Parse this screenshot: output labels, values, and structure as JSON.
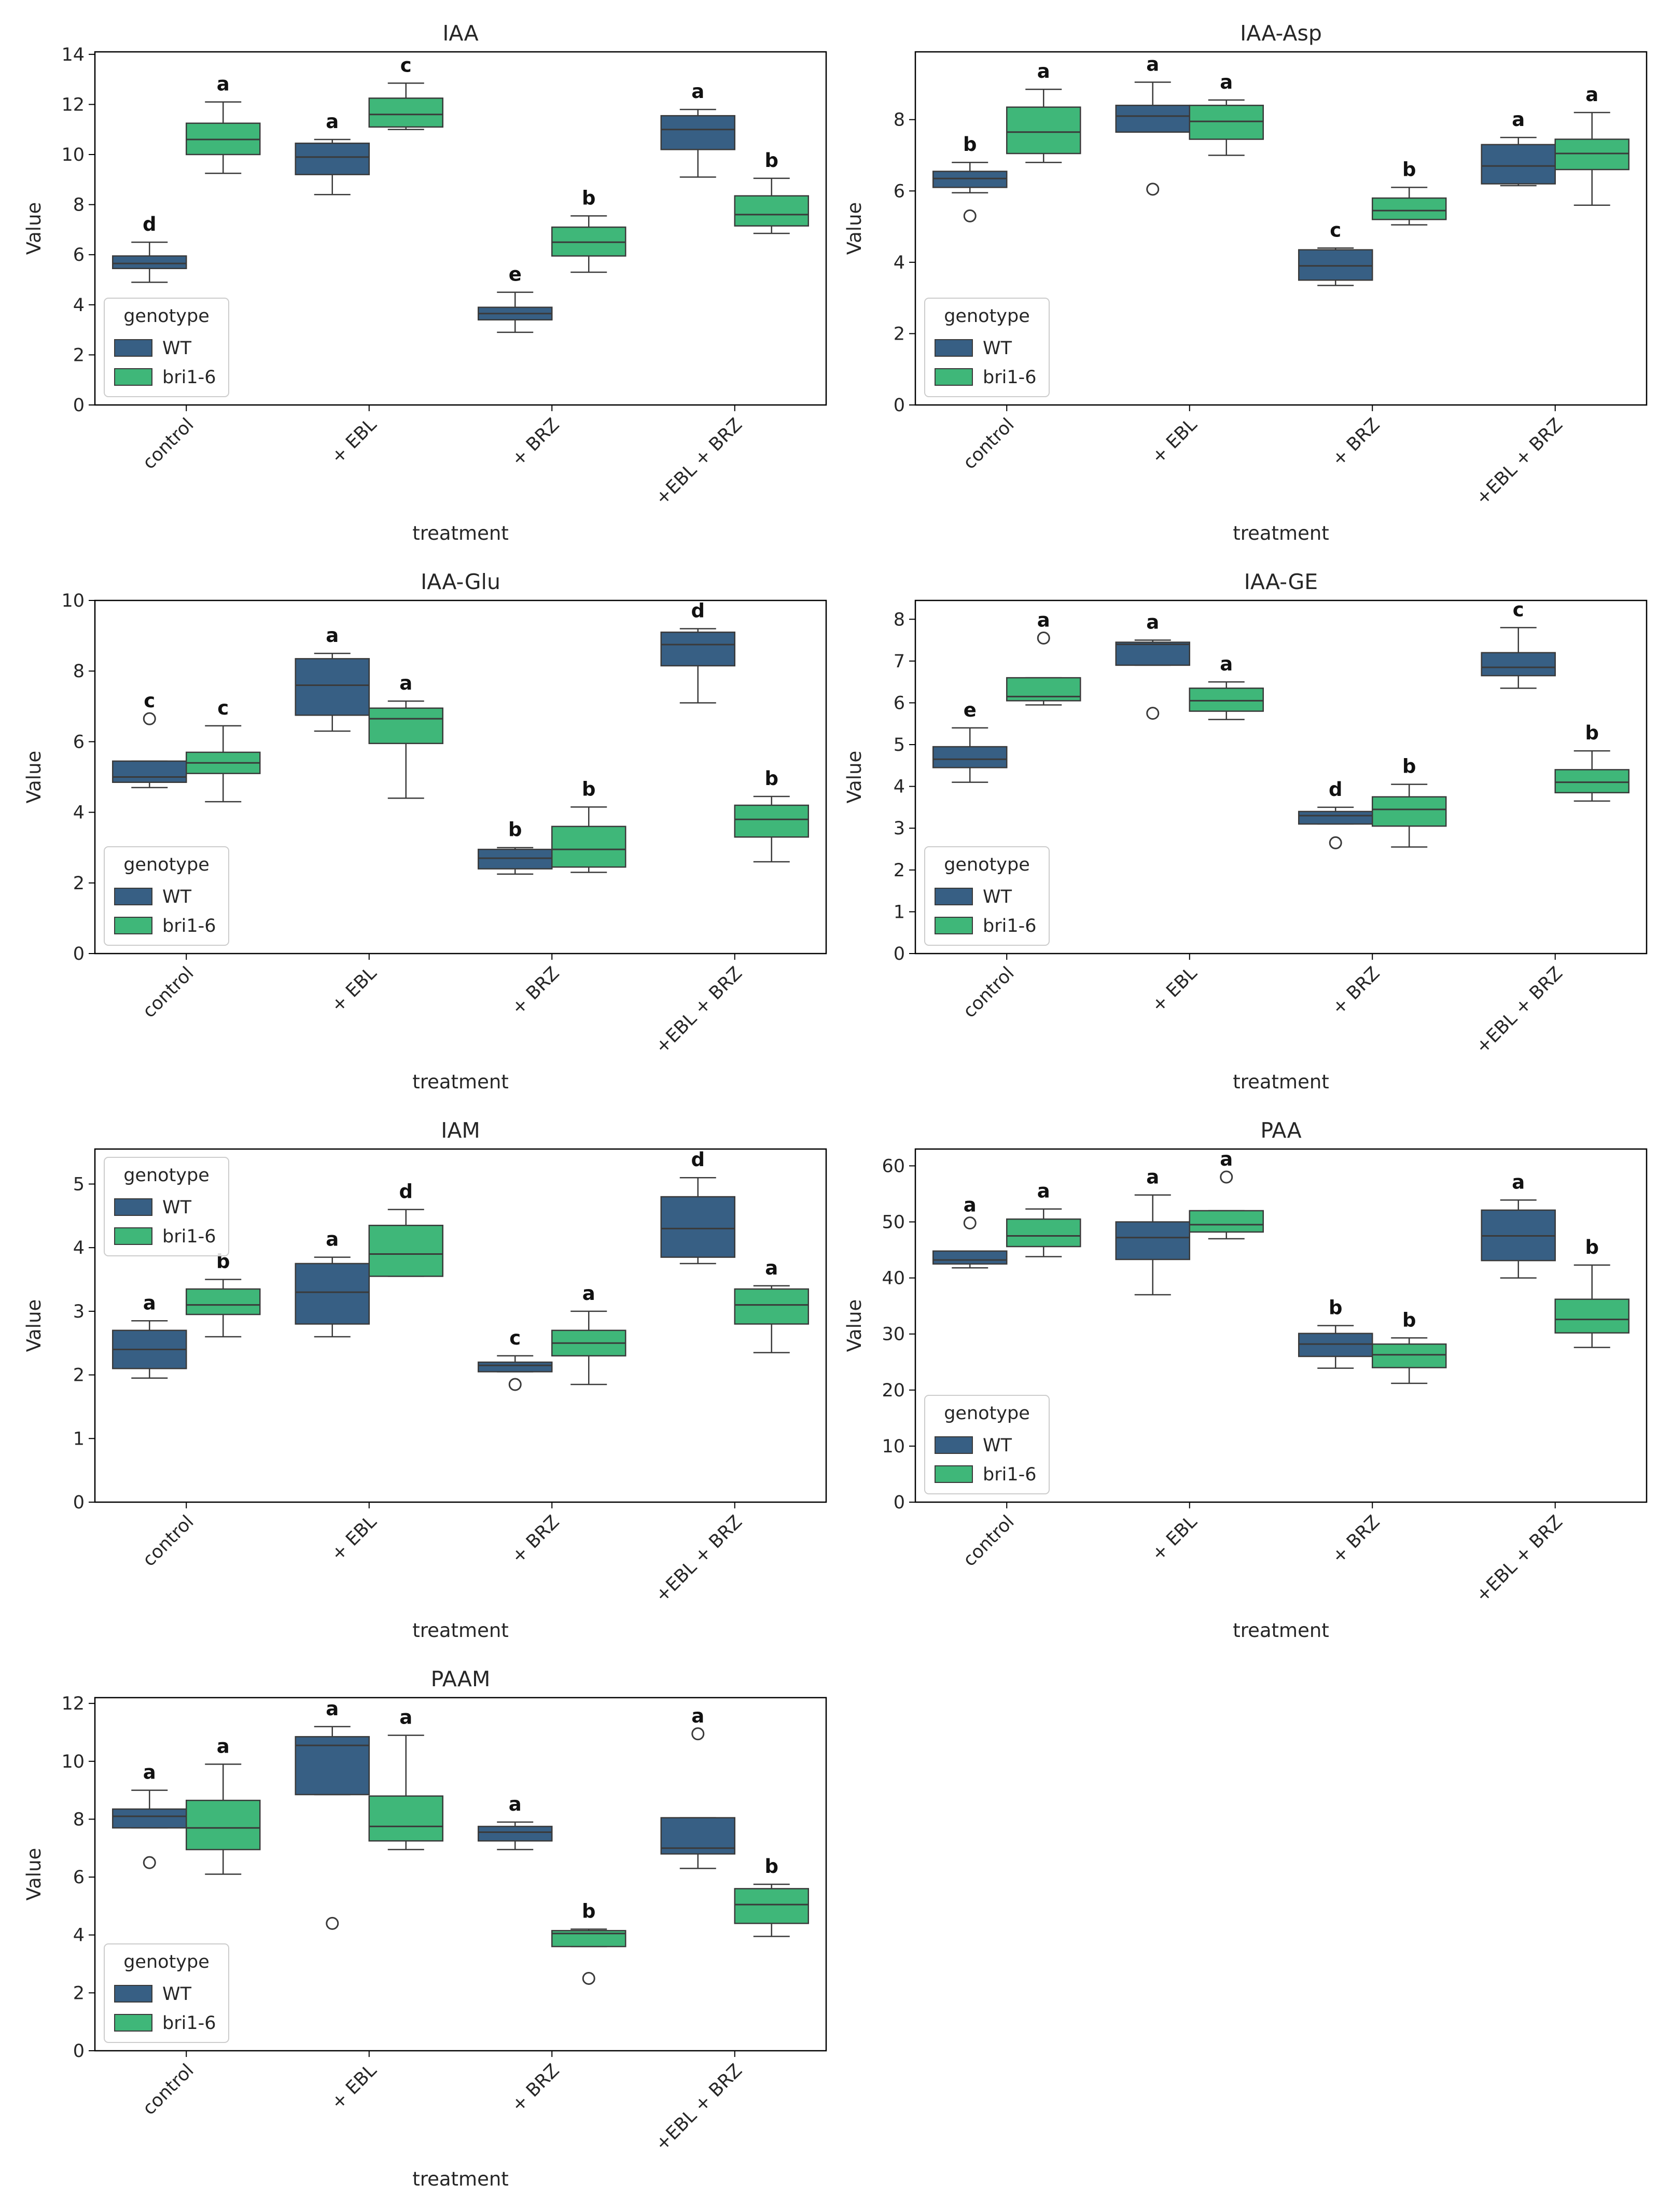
{
  "figure": {
    "x_axis_label": "treatment",
    "y_axis_label": "Value",
    "legend_title": "genotype",
    "categories": [
      "control",
      "+ EBL",
      "+ BRZ",
      "+EBL + BRZ"
    ],
    "series_names": [
      "WT",
      "bri1-6"
    ],
    "colors": {
      "WT": "#375f84",
      "bri1-6": "#3fb779",
      "median": "#3a3a3a",
      "frame": "#000000"
    }
  },
  "chart_data": [
    {
      "type": "box",
      "title": "IAA",
      "xlabel": "treatment",
      "ylabel": "Value",
      "categories": [
        "control",
        "+ EBL",
        "+ BRZ",
        "+EBL + BRZ"
      ],
      "ylim": [
        0,
        14.1
      ],
      "yticks": [
        0,
        2,
        4,
        6,
        8,
        10,
        12,
        14
      ],
      "legend": {
        "title": "genotype",
        "entries": [
          "WT",
          "bri1-6"
        ],
        "placement": "lower-left"
      },
      "series": [
        {
          "name": "WT",
          "boxes": [
            {
              "min": 4.9,
              "q1": 5.45,
              "median": 5.65,
              "q3": 5.95,
              "max": 6.5,
              "outliers": [],
              "letter": "d"
            },
            {
              "min": 8.4,
              "q1": 9.2,
              "median": 9.9,
              "q3": 10.45,
              "max": 10.6,
              "outliers": [],
              "letter": "a"
            },
            {
              "min": 2.9,
              "q1": 3.4,
              "median": 3.65,
              "q3": 3.9,
              "max": 4.5,
              "outliers": [],
              "letter": "e"
            },
            {
              "min": 9.1,
              "q1": 10.2,
              "median": 11.0,
              "q3": 11.55,
              "max": 11.8,
              "outliers": [],
              "letter": "a"
            }
          ]
        },
        {
          "name": "bri1-6",
          "boxes": [
            {
              "min": 9.25,
              "q1": 10.0,
              "median": 10.6,
              "q3": 11.25,
              "max": 12.1,
              "outliers": [],
              "letter": "a"
            },
            {
              "min": 11.0,
              "q1": 11.1,
              "median": 11.6,
              "q3": 12.25,
              "max": 12.85,
              "outliers": [],
              "letter": "c"
            },
            {
              "min": 5.3,
              "q1": 5.95,
              "median": 6.5,
              "q3": 7.1,
              "max": 7.55,
              "outliers": [],
              "letter": "b"
            },
            {
              "min": 6.85,
              "q1": 7.15,
              "median": 7.6,
              "q3": 8.35,
              "max": 9.05,
              "outliers": [],
              "letter": "b"
            }
          ]
        }
      ]
    },
    {
      "type": "box",
      "title": "IAA-Asp",
      "xlabel": "treatment",
      "ylabel": "Value",
      "categories": [
        "control",
        "+ EBL",
        "+ BRZ",
        "+EBL + BRZ"
      ],
      "ylim": [
        0,
        9.9
      ],
      "yticks": [
        0,
        2,
        4,
        6,
        8
      ],
      "legend": {
        "title": "genotype",
        "entries": [
          "WT",
          "bri1-6"
        ],
        "placement": "lower-left"
      },
      "series": [
        {
          "name": "WT",
          "boxes": [
            {
              "min": 5.95,
              "q1": 6.1,
              "median": 6.35,
              "q3": 6.55,
              "max": 6.8,
              "outliers": [
                5.3
              ],
              "letter": "b"
            },
            {
              "min": 7.65,
              "q1": 7.65,
              "median": 8.1,
              "q3": 8.4,
              "max": 9.05,
              "outliers": [
                6.05
              ],
              "letter": "a"
            },
            {
              "min": 3.35,
              "q1": 3.5,
              "median": 3.9,
              "q3": 4.35,
              "max": 4.4,
              "outliers": [],
              "letter": "c"
            },
            {
              "min": 6.15,
              "q1": 6.2,
              "median": 6.7,
              "q3": 7.3,
              "max": 7.5,
              "outliers": [],
              "letter": "a"
            }
          ]
        },
        {
          "name": "bri1-6",
          "boxes": [
            {
              "min": 6.8,
              "q1": 7.05,
              "median": 7.65,
              "q3": 8.35,
              "max": 8.85,
              "outliers": [],
              "letter": "a"
            },
            {
              "min": 7.0,
              "q1": 7.45,
              "median": 7.95,
              "q3": 8.4,
              "max": 8.55,
              "outliers": [],
              "letter": "a"
            },
            {
              "min": 5.05,
              "q1": 5.2,
              "median": 5.45,
              "q3": 5.8,
              "max": 6.1,
              "outliers": [],
              "letter": "b"
            },
            {
              "min": 5.6,
              "q1": 6.6,
              "median": 7.05,
              "q3": 7.45,
              "max": 8.2,
              "outliers": [],
              "letter": "a"
            }
          ]
        }
      ]
    },
    {
      "type": "box",
      "title": "IAA-Glu",
      "xlabel": "treatment",
      "ylabel": "Value",
      "categories": [
        "control",
        "+ EBL",
        "+ BRZ",
        "+EBL + BRZ"
      ],
      "ylim": [
        0,
        10.0
      ],
      "yticks": [
        0,
        2,
        4,
        6,
        8,
        10
      ],
      "legend": {
        "title": "genotype",
        "entries": [
          "WT",
          "bri1-6"
        ],
        "placement": "lower-left"
      },
      "series": [
        {
          "name": "WT",
          "boxes": [
            {
              "min": 4.7,
              "q1": 4.85,
              "median": 5.0,
              "q3": 5.45,
              "max": 5.45,
              "outliers": [
                6.65
              ],
              "letter": "c"
            },
            {
              "min": 6.3,
              "q1": 6.75,
              "median": 7.6,
              "q3": 8.35,
              "max": 8.5,
              "outliers": [],
              "letter": "a"
            },
            {
              "min": 2.25,
              "q1": 2.4,
              "median": 2.7,
              "q3": 2.95,
              "max": 3.0,
              "outliers": [],
              "letter": "b"
            },
            {
              "min": 7.1,
              "q1": 8.15,
              "median": 8.75,
              "q3": 9.1,
              "max": 9.2,
              "outliers": [],
              "letter": "d"
            }
          ]
        },
        {
          "name": "bri1-6",
          "boxes": [
            {
              "min": 4.3,
              "q1": 5.1,
              "median": 5.4,
              "q3": 5.7,
              "max": 6.45,
              "outliers": [],
              "letter": "c"
            },
            {
              "min": 4.4,
              "q1": 5.95,
              "median": 6.65,
              "q3": 6.95,
              "max": 7.15,
              "outliers": [],
              "letter": "a"
            },
            {
              "min": 2.3,
              "q1": 2.45,
              "median": 2.95,
              "q3": 3.6,
              "max": 4.15,
              "outliers": [],
              "letter": "b"
            },
            {
              "min": 2.6,
              "q1": 3.3,
              "median": 3.8,
              "q3": 4.2,
              "max": 4.45,
              "outliers": [],
              "letter": "b"
            }
          ]
        }
      ]
    },
    {
      "type": "box",
      "title": "IAA-GE",
      "xlabel": "treatment",
      "ylabel": "Value",
      "categories": [
        "control",
        "+ EBL",
        "+ BRZ",
        "+EBL + BRZ"
      ],
      "ylim": [
        0,
        8.45
      ],
      "yticks": [
        0,
        1,
        2,
        3,
        4,
        5,
        6,
        7,
        8
      ],
      "legend": {
        "title": "genotype",
        "entries": [
          "WT",
          "bri1-6"
        ],
        "placement": "lower-left"
      },
      "series": [
        {
          "name": "WT",
          "boxes": [
            {
              "min": 4.1,
              "q1": 4.45,
              "median": 4.65,
              "q3": 4.95,
              "max": 5.4,
              "outliers": [],
              "letter": "e"
            },
            {
              "min": 6.9,
              "q1": 6.9,
              "median": 7.4,
              "q3": 7.45,
              "max": 7.5,
              "outliers": [
                5.75
              ],
              "letter": "a"
            },
            {
              "min": 3.1,
              "q1": 3.1,
              "median": 3.3,
              "q3": 3.4,
              "max": 3.5,
              "outliers": [
                2.65
              ],
              "letter": "d"
            },
            {
              "min": 6.35,
              "q1": 6.65,
              "median": 6.85,
              "q3": 7.2,
              "max": 7.8,
              "outliers": [],
              "letter": "c"
            }
          ]
        },
        {
          "name": "bri1-6",
          "boxes": [
            {
              "min": 5.95,
              "q1": 6.05,
              "median": 6.15,
              "q3": 6.6,
              "max": 6.6,
              "outliers": [
                7.55
              ],
              "letter": "a"
            },
            {
              "min": 5.6,
              "q1": 5.8,
              "median": 6.05,
              "q3": 6.35,
              "max": 6.5,
              "outliers": [],
              "letter": "a"
            },
            {
              "min": 2.55,
              "q1": 3.05,
              "median": 3.45,
              "q3": 3.75,
              "max": 4.05,
              "outliers": [],
              "letter": "b"
            },
            {
              "min": 3.65,
              "q1": 3.85,
              "median": 4.1,
              "q3": 4.4,
              "max": 4.85,
              "outliers": [],
              "letter": "b"
            }
          ]
        }
      ]
    },
    {
      "type": "box",
      "title": "IAM",
      "xlabel": "treatment",
      "ylabel": "Value",
      "categories": [
        "control",
        "+ EBL",
        "+ BRZ",
        "+EBL + BRZ"
      ],
      "ylim": [
        0,
        5.55
      ],
      "yticks": [
        0,
        1,
        2,
        3,
        4,
        5
      ],
      "legend": {
        "title": "genotype",
        "entries": [
          "WT",
          "bri1-6"
        ],
        "placement": "upper-left"
      },
      "series": [
        {
          "name": "WT",
          "boxes": [
            {
              "min": 1.95,
              "q1": 2.1,
              "median": 2.4,
              "q3": 2.7,
              "max": 2.85,
              "outliers": [],
              "letter": "a"
            },
            {
              "min": 2.6,
              "q1": 2.8,
              "median": 3.3,
              "q3": 3.75,
              "max": 3.85,
              "outliers": [],
              "letter": "a"
            },
            {
              "min": 2.05,
              "q1": 2.05,
              "median": 2.15,
              "q3": 2.2,
              "max": 2.3,
              "outliers": [
                1.85
              ],
              "letter": "c"
            },
            {
              "min": 3.75,
              "q1": 3.85,
              "median": 4.3,
              "q3": 4.8,
              "max": 5.1,
              "outliers": [],
              "letter": "d"
            }
          ]
        },
        {
          "name": "bri1-6",
          "boxes": [
            {
              "min": 2.6,
              "q1": 2.95,
              "median": 3.1,
              "q3": 3.35,
              "max": 3.5,
              "outliers": [],
              "letter": "b"
            },
            {
              "min": 3.55,
              "q1": 3.55,
              "median": 3.9,
              "q3": 4.35,
              "max": 4.6,
              "outliers": [],
              "letter": "d"
            },
            {
              "min": 1.85,
              "q1": 2.3,
              "median": 2.5,
              "q3": 2.7,
              "max": 3.0,
              "outliers": [],
              "letter": "a"
            },
            {
              "min": 2.35,
              "q1": 2.8,
              "median": 3.1,
              "q3": 3.35,
              "max": 3.4,
              "outliers": [],
              "letter": "a"
            }
          ]
        }
      ]
    },
    {
      "type": "box",
      "title": "PAA",
      "xlabel": "treatment",
      "ylabel": "Value",
      "categories": [
        "control",
        "+ EBL",
        "+ BRZ",
        "+EBL + BRZ"
      ],
      "ylim": [
        0,
        63.0
      ],
      "yticks": [
        0,
        10,
        20,
        30,
        40,
        50,
        60
      ],
      "legend": {
        "title": "genotype",
        "entries": [
          "WT",
          "bri1-6"
        ],
        "placement": "lower-left"
      },
      "series": [
        {
          "name": "WT",
          "boxes": [
            {
              "min": 41.8,
              "q1": 42.5,
              "median": 43.2,
              "q3": 44.8,
              "max": 44.8,
              "outliers": [
                49.8
              ],
              "letter": "a"
            },
            {
              "min": 37.0,
              "q1": 43.3,
              "median": 47.2,
              "q3": 50.0,
              "max": 54.8,
              "outliers": [],
              "letter": "a"
            },
            {
              "min": 23.9,
              "q1": 26.0,
              "median": 28.2,
              "q3": 30.1,
              "max": 31.5,
              "outliers": [],
              "letter": "b"
            },
            {
              "min": 40.0,
              "q1": 43.1,
              "median": 47.5,
              "q3": 52.1,
              "max": 53.9,
              "outliers": [],
              "letter": "a"
            }
          ]
        },
        {
          "name": "bri1-6",
          "boxes": [
            {
              "min": 43.8,
              "q1": 45.6,
              "median": 47.5,
              "q3": 50.5,
              "max": 52.3,
              "outliers": [],
              "letter": "a"
            },
            {
              "min": 47.0,
              "q1": 48.2,
              "median": 49.5,
              "q3": 52.0,
              "max": 52.0,
              "outliers": [
                58.0
              ],
              "letter": "a"
            },
            {
              "min": 21.2,
              "q1": 24.0,
              "median": 26.3,
              "q3": 28.2,
              "max": 29.3,
              "outliers": [],
              "letter": "b"
            },
            {
              "min": 27.6,
              "q1": 30.2,
              "median": 32.6,
              "q3": 36.2,
              "max": 42.3,
              "outliers": [],
              "letter": "b"
            }
          ]
        }
      ]
    },
    {
      "type": "box",
      "title": "PAAM",
      "xlabel": "treatment",
      "ylabel": "Value",
      "categories": [
        "control",
        "+ EBL",
        "+ BRZ",
        "+EBL + BRZ"
      ],
      "ylim": [
        0,
        12.2
      ],
      "yticks": [
        0,
        2,
        4,
        6,
        8,
        10,
        12
      ],
      "legend": {
        "title": "genotype",
        "entries": [
          "WT",
          "bri1-6"
        ],
        "placement": "lower-left"
      },
      "series": [
        {
          "name": "WT",
          "boxes": [
            {
              "min": 7.7,
              "q1": 7.7,
              "median": 8.1,
              "q3": 8.35,
              "max": 9.0,
              "outliers": [
                6.5
              ],
              "letter": "a"
            },
            {
              "min": 8.85,
              "q1": 8.85,
              "median": 10.55,
              "q3": 10.85,
              "max": 11.2,
              "outliers": [
                4.4
              ],
              "letter": "a"
            },
            {
              "min": 6.95,
              "q1": 7.25,
              "median": 7.55,
              "q3": 7.75,
              "max": 7.9,
              "outliers": [],
              "letter": "a"
            },
            {
              "min": 6.3,
              "q1": 6.8,
              "median": 7.0,
              "q3": 8.05,
              "max": 8.05,
              "outliers": [
                10.95
              ],
              "letter": "a"
            }
          ]
        },
        {
          "name": "bri1-6",
          "boxes": [
            {
              "min": 6.1,
              "q1": 6.95,
              "median": 7.7,
              "q3": 8.65,
              "max": 9.9,
              "outliers": [],
              "letter": "a"
            },
            {
              "min": 6.95,
              "q1": 7.25,
              "median": 7.75,
              "q3": 8.8,
              "max": 10.9,
              "outliers": [],
              "letter": "a"
            },
            {
              "min": 3.6,
              "q1": 3.6,
              "median": 4.05,
              "q3": 4.15,
              "max": 4.2,
              "outliers": [
                2.5
              ],
              "letter": "b"
            },
            {
              "min": 3.95,
              "q1": 4.4,
              "median": 5.05,
              "q3": 5.6,
              "max": 5.75,
              "outliers": [],
              "letter": "b"
            }
          ]
        }
      ]
    }
  ]
}
